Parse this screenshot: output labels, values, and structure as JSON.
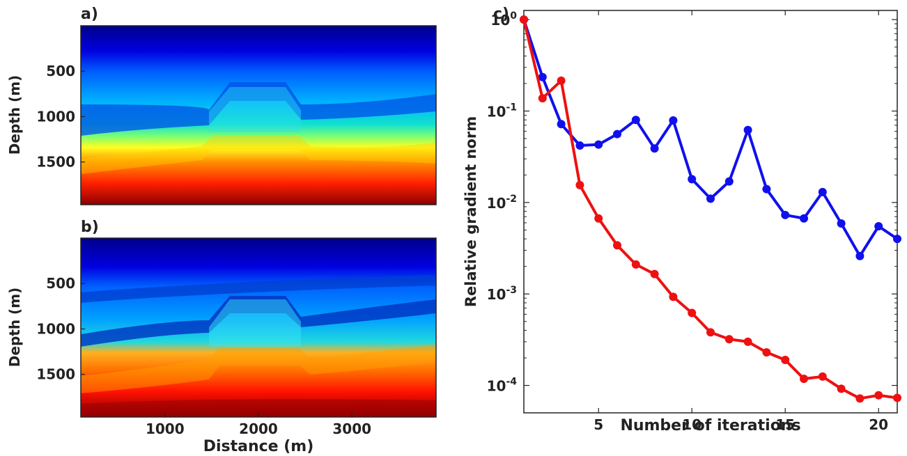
{
  "chart_data": [
    {
      "type": "heatmap",
      "panel_label": "a)",
      "title": "",
      "xlabel": "",
      "ylabel": "Depth (m)",
      "x_ticks": [],
      "y_ticks": [
        500,
        1000,
        1500
      ],
      "xlim": [
        100,
        3900
      ],
      "ylim": [
        0,
        1970
      ],
      "colormap": "jet",
      "color_stops": [
        "#00008b",
        "#0000ff",
        "#0080ff",
        "#00e5ff",
        "#7dff80",
        "#ffff00",
        "#ff8000",
        "#ff0000",
        "#800000"
      ]
    },
    {
      "type": "heatmap",
      "panel_label": "b)",
      "title": "",
      "xlabel": "Distance (m)",
      "ylabel": "Depth (m)",
      "x_ticks": [
        1000,
        2000,
        3000
      ],
      "y_ticks": [
        500,
        1000,
        1500
      ],
      "xlim": [
        100,
        3900
      ],
      "ylim": [
        0,
        1970
      ],
      "colormap": "jet",
      "color_stops": [
        "#00008b",
        "#0000ff",
        "#0080ff",
        "#00e5ff",
        "#7dff80",
        "#ffff00",
        "#ff8000",
        "#ff0000",
        "#800000"
      ]
    },
    {
      "type": "line",
      "panel_label": "c)",
      "title": "",
      "xlabel": "Number of iterations",
      "ylabel": "Relative gradient norm",
      "xlim": [
        1,
        21
      ],
      "ylim_log10": [
        -4.3,
        0.1
      ],
      "y_scale": "log",
      "x_ticks": [
        5,
        10,
        15,
        20
      ],
      "y_ticks": [
        {
          "mantissa": "10",
          "exp": "0"
        },
        {
          "mantissa": "10",
          "exp": "-1"
        },
        {
          "mantissa": "10",
          "exp": "-2"
        },
        {
          "mantissa": "10",
          "exp": "-3"
        },
        {
          "mantissa": "10",
          "exp": "-4"
        }
      ],
      "y_tick_values": [
        1,
        0.1,
        0.01,
        0.001,
        0.0001
      ],
      "grid": false,
      "x": [
        1,
        2,
        3,
        4,
        5,
        6,
        7,
        8,
        9,
        10,
        11,
        12,
        13,
        14,
        15,
        16,
        17,
        18,
        19,
        20,
        21
      ],
      "series": [
        {
          "color": "#1010ee",
          "values": [
            1,
            0.235,
            0.072,
            0.042,
            0.043,
            0.056,
            0.08,
            0.039,
            0.079,
            0.018,
            0.011,
            0.017,
            0.062,
            0.014,
            0.0073,
            0.0067,
            0.013,
            0.0059,
            0.0026,
            0.0055,
            0.004
          ]
        },
        {
          "color": "#ee1111",
          "values": [
            1,
            0.138,
            0.215,
            0.0155,
            0.0067,
            0.0034,
            0.0021,
            0.00165,
            0.00093,
            0.00062,
            0.00038,
            0.00032,
            0.0003,
            0.00023,
            0.00019,
            0.000118,
            0.000125,
            9.2e-05,
            7.2e-05,
            7.8e-05,
            7.3e-05
          ]
        }
      ]
    }
  ]
}
